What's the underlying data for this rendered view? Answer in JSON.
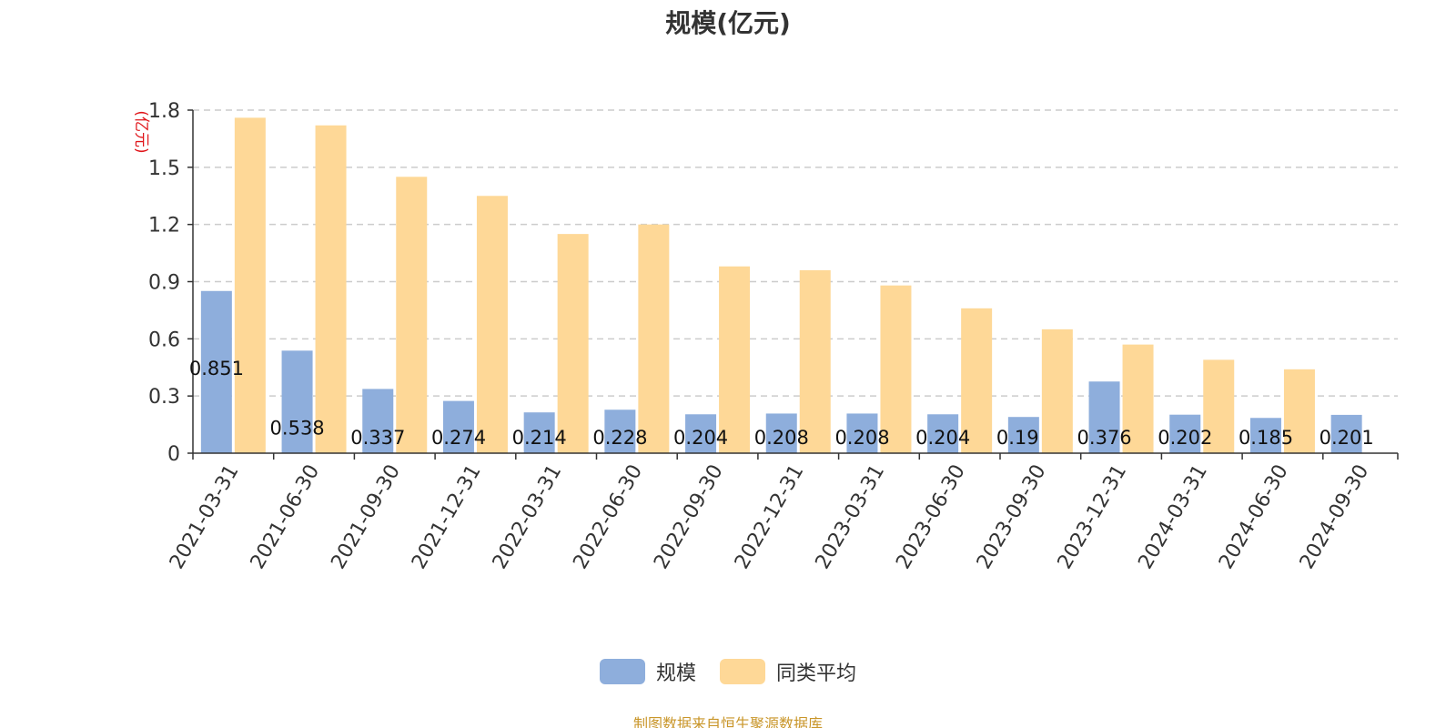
{
  "chart_title": "规模(亿元)",
  "source_note": "制图数据来自恒生聚源数据库",
  "colors": {
    "series1": "#8eaedc",
    "series2": "#fed897",
    "axis_unit": "#e0161b",
    "source": "#c9962a",
    "grid": "#cccccc",
    "axis": "#333333"
  },
  "legend": [
    {
      "name": "规模",
      "color": "#8eaedc"
    },
    {
      "name": "同类平均",
      "color": "#fed897"
    }
  ],
  "chart_data": {
    "type": "bar",
    "title": "规模(亿元)",
    "ylabel": "(亿元)",
    "xlabel": "",
    "ylim": [
      0,
      1.8
    ],
    "yticks": [
      "0",
      "0.3",
      "0.6",
      "0.9",
      "1.2",
      "1.5",
      "1.8"
    ],
    "grid": true,
    "legend_position": "bottom-center",
    "categories": [
      "2021-03-31",
      "2021-06-30",
      "2021-09-30",
      "2021-12-31",
      "2022-03-31",
      "2022-06-30",
      "2022-09-30",
      "2022-12-31",
      "2023-03-31",
      "2023-06-30",
      "2023-09-30",
      "2023-12-31",
      "2024-03-31",
      "2024-06-30",
      "2024-09-30"
    ],
    "series": [
      {
        "name": "规模",
        "values": [
          0.851,
          0.538,
          0.337,
          0.274,
          0.214,
          0.228,
          0.204,
          0.208,
          0.208,
          0.204,
          0.19,
          0.376,
          0.202,
          0.185,
          0.201
        ],
        "labels": [
          "0.851",
          "0.538",
          "0.337",
          "0.274",
          "0.214",
          "0.228",
          "0.204",
          "0.208",
          "0.208",
          "0.204",
          "0.19",
          "0.376",
          "0.202",
          "0.185",
          "0.201"
        ]
      },
      {
        "name": "同类平均",
        "values": [
          1.76,
          1.72,
          1.45,
          1.35,
          1.15,
          1.2,
          0.98,
          0.96,
          0.88,
          0.76,
          0.65,
          0.57,
          0.49,
          0.44,
          null
        ]
      }
    ]
  }
}
